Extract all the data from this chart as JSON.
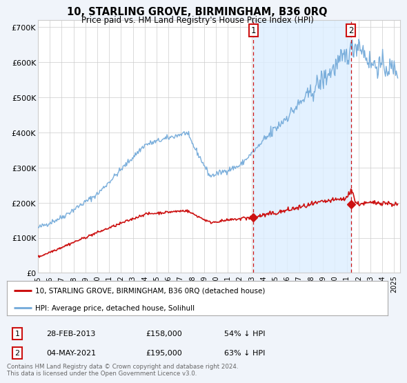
{
  "title": "10, STARLING GROVE, BIRMINGHAM, B36 0RQ",
  "subtitle": "Price paid vs. HM Land Registry's House Price Index (HPI)",
  "xlim": [
    1995.0,
    2025.5
  ],
  "ylim": [
    0,
    720000
  ],
  "yticks": [
    0,
    100000,
    200000,
    300000,
    400000,
    500000,
    600000,
    700000
  ],
  "ytick_labels": [
    "£0",
    "£100K",
    "£200K",
    "£300K",
    "£400K",
    "£500K",
    "£600K",
    "£700K"
  ],
  "xticks": [
    1995,
    1996,
    1997,
    1998,
    1999,
    2000,
    2001,
    2002,
    2003,
    2004,
    2005,
    2006,
    2007,
    2008,
    2009,
    2010,
    2011,
    2012,
    2013,
    2014,
    2015,
    2016,
    2017,
    2018,
    2019,
    2020,
    2021,
    2022,
    2023,
    2024,
    2025
  ],
  "hpi_color": "#7aaedb",
  "property_color": "#cc1111",
  "shade_color": "#ddeeff",
  "marker1_x": 2013.15,
  "marker2_x": 2021.35,
  "marker1_price": 158000,
  "marker2_price": 195000,
  "marker1_label": "1",
  "marker2_label": "2",
  "legend_property": "10, STARLING GROVE, BIRMINGHAM, B36 0RQ (detached house)",
  "legend_hpi": "HPI: Average price, detached house, Solihull",
  "sale1_date": "28-FEB-2013",
  "sale1_price": "£158,000",
  "sale1_hpi": "54% ↓ HPI",
  "sale2_date": "04-MAY-2021",
  "sale2_price": "£195,000",
  "sale2_hpi": "63% ↓ HPI",
  "footer": "Contains HM Land Registry data © Crown copyright and database right 2024.\nThis data is licensed under the Open Government Licence v3.0.",
  "background_color": "#f0f4fa",
  "plot_bg_color": "#ffffff",
  "grid_color": "#cccccc"
}
